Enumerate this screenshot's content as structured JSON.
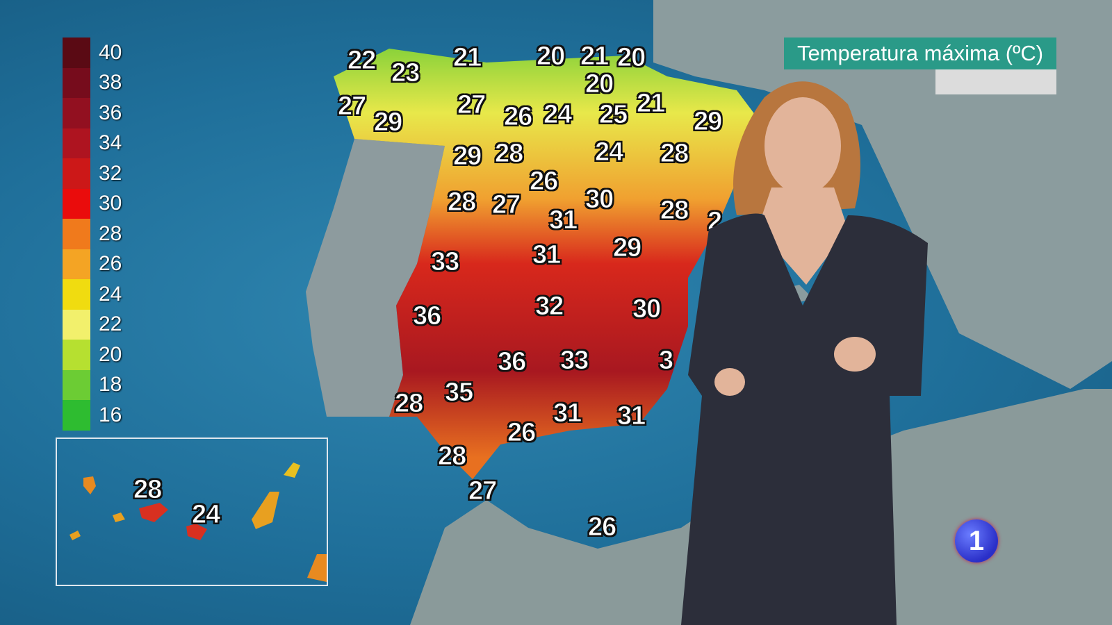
{
  "title_banner": "Temperatura máxima (ºC)",
  "channel_logo": "1",
  "legend": [
    {
      "label": "40",
      "color": "#5a0a14"
    },
    {
      "label": "38",
      "color": "#760c1c"
    },
    {
      "label": "36",
      "color": "#921020"
    },
    {
      "label": "34",
      "color": "#ae1420"
    },
    {
      "label": "32",
      "color": "#cc1818"
    },
    {
      "label": "30",
      "color": "#ea0c0c"
    },
    {
      "label": "28",
      "color": "#f07a1c"
    },
    {
      "label": "26",
      "color": "#f4a424"
    },
    {
      "label": "24",
      "color": "#f0dc10"
    },
    {
      "label": "22",
      "color": "#f2f06c"
    },
    {
      "label": "20",
      "color": "#b6e030"
    },
    {
      "label": "18",
      "color": "#6ccc34"
    },
    {
      "label": "16",
      "color": "#2ebc30"
    }
  ],
  "temperatures": [
    "22",
    "23",
    "21",
    "20",
    "21",
    "20",
    "20",
    "27",
    "29",
    "27",
    "26",
    "24",
    "25",
    "21",
    "29",
    "29",
    "28",
    "24",
    "28",
    "26",
    "28",
    "27",
    "30",
    "31",
    "28",
    "2",
    "33",
    "31",
    "29",
    "36",
    "32",
    "30",
    "36",
    "33",
    "3",
    "35",
    "28",
    "31",
    "31",
    "26",
    "28",
    "27",
    "26"
  ],
  "canarias_temperatures": [
    "28",
    "24"
  ]
}
